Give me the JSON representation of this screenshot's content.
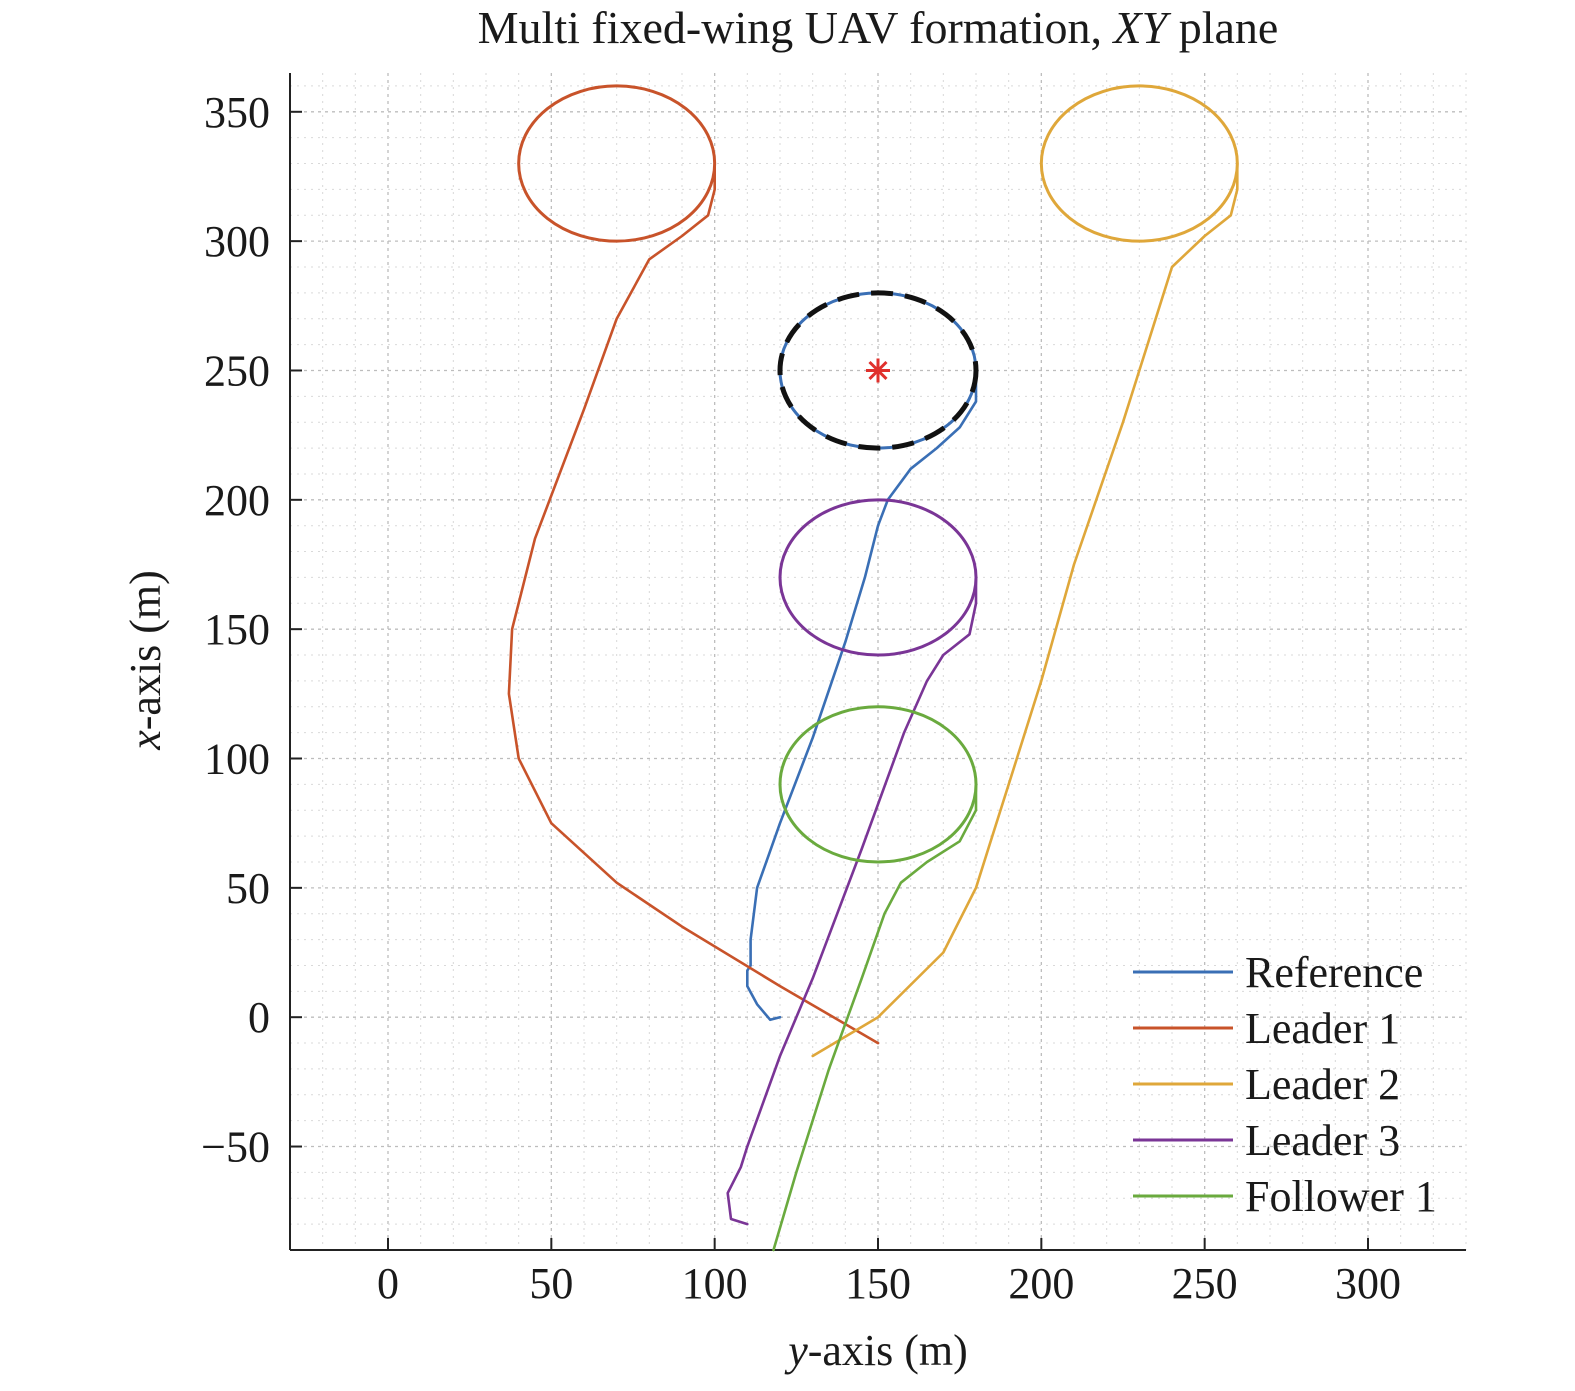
{
  "chart_data": {
    "type": "line",
    "title_parts": [
      "Multi fixed-wing UAV formation, ",
      "XY",
      " plane"
    ],
    "xlabel_parts": [
      "y",
      "-axis (m)"
    ],
    "ylabel_parts": [
      "x",
      "-axis (m)"
    ],
    "xlim": [
      -30,
      330
    ],
    "ylim": [
      -90,
      365
    ],
    "xticks": [
      0,
      50,
      100,
      150,
      200,
      250,
      300
    ],
    "yticks": [
      -50,
      0,
      50,
      100,
      150,
      200,
      250,
      300,
      350
    ],
    "xtick_labels": [
      "0",
      "50",
      "100",
      "150",
      "200",
      "250",
      "300"
    ],
    "ytick_labels": [
      "−50",
      "0",
      "50",
      "100",
      "150",
      "200",
      "250",
      "300",
      "350"
    ],
    "grid": "dotted",
    "legend_position": "bottom-right",
    "colors": {
      "reference": "#3a6fb5",
      "leader1": "#c8532a",
      "leader2": "#dfa73a",
      "leader3": "#7a3596",
      "follower1": "#6aaa3e",
      "target_circle": "#111111",
      "target_marker": "#e0302c"
    },
    "target": {
      "center": [
        150,
        250
      ],
      "radius": 30,
      "marker": "asterisk"
    },
    "series": [
      {
        "name": "Reference",
        "color": "#3a6fb5",
        "approach": [
          [
            120,
            0
          ],
          [
            117,
            -1
          ],
          [
            113,
            5
          ],
          [
            110,
            12
          ],
          [
            110,
            18
          ],
          [
            111,
            20
          ],
          [
            111,
            30
          ],
          [
            113,
            50
          ],
          [
            120,
            75
          ],
          [
            130,
            108
          ],
          [
            140,
            145
          ],
          [
            146,
            170
          ],
          [
            150,
            190
          ],
          [
            153,
            200
          ],
          [
            160,
            212
          ],
          [
            168,
            220
          ],
          [
            175,
            228
          ],
          [
            180,
            238
          ],
          [
            180,
            250
          ]
        ],
        "orbit": {
          "center": [
            150,
            250
          ],
          "radius": 30
        }
      },
      {
        "name": "Leader 1",
        "color": "#c8532a",
        "approach": [
          [
            150,
            -10
          ],
          [
            120,
            12
          ],
          [
            90,
            35
          ],
          [
            70,
            52
          ],
          [
            50,
            75
          ],
          [
            40,
            100
          ],
          [
            37,
            125
          ],
          [
            38,
            150
          ],
          [
            45,
            185
          ],
          [
            60,
            235
          ],
          [
            70,
            270
          ],
          [
            80,
            293
          ],
          [
            90,
            302
          ],
          [
            98,
            310
          ],
          [
            100,
            320
          ],
          [
            100,
            330
          ]
        ],
        "orbit": {
          "center": [
            70,
            330
          ],
          "radius": 30
        }
      },
      {
        "name": "Leader 2",
        "color": "#dfa73a",
        "approach": [
          [
            130,
            -15
          ],
          [
            150,
            0
          ],
          [
            170,
            25
          ],
          [
            180,
            50
          ],
          [
            185,
            70
          ],
          [
            190,
            90
          ],
          [
            200,
            130
          ],
          [
            210,
            175
          ],
          [
            225,
            230
          ],
          [
            235,
            270
          ],
          [
            240,
            290
          ],
          [
            250,
            302
          ],
          [
            258,
            310
          ],
          [
            260,
            320
          ],
          [
            260,
            330
          ]
        ],
        "orbit": {
          "center": [
            230,
            330
          ],
          "radius": 30
        }
      },
      {
        "name": "Leader 3",
        "color": "#7a3596",
        "approach": [
          [
            110,
            -80
          ],
          [
            105,
            -78
          ],
          [
            104,
            -68
          ],
          [
            108,
            -58
          ],
          [
            110,
            -50
          ],
          [
            120,
            -15
          ],
          [
            130,
            15
          ],
          [
            145,
            65
          ],
          [
            158,
            110
          ],
          [
            165,
            130
          ],
          [
            170,
            140
          ],
          [
            178,
            148
          ],
          [
            180,
            160
          ],
          [
            180,
            170
          ]
        ],
        "orbit": {
          "center": [
            150,
            170
          ],
          "radius": 30
        }
      },
      {
        "name": "Follower 1",
        "color": "#6aaa3e",
        "approach": [
          [
            118,
            -90
          ],
          [
            125,
            -60
          ],
          [
            135,
            -20
          ],
          [
            145,
            15
          ],
          [
            152,
            40
          ],
          [
            157,
            52
          ],
          [
            165,
            60
          ],
          [
            175,
            68
          ],
          [
            180,
            80
          ],
          [
            180,
            90
          ]
        ],
        "orbit": {
          "center": [
            150,
            90
          ],
          "radius": 30
        }
      }
    ]
  }
}
